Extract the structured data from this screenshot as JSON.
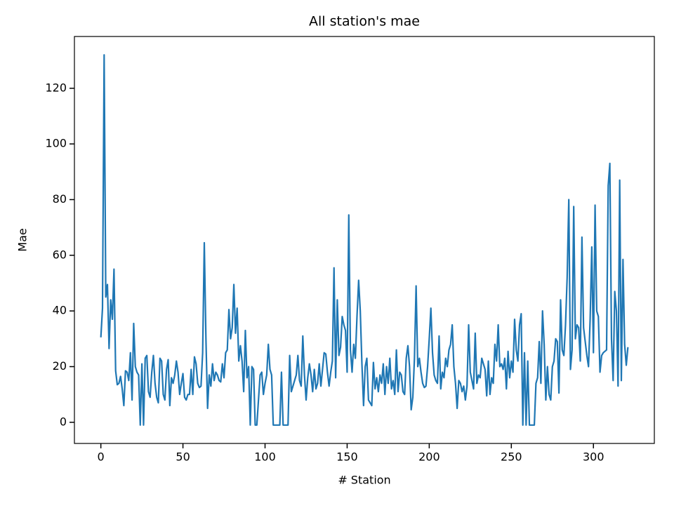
{
  "chart_data": {
    "type": "line",
    "title": "All station's mae",
    "xlabel": "# Station",
    "ylabel": "Mae",
    "color": "#1f77b4",
    "xlim": [
      -16.1,
      337.1
    ],
    "ylim": [
      -7.6,
      138.6
    ],
    "xticks": [
      0,
      50,
      100,
      150,
      200,
      250,
      300
    ],
    "yticks": [
      0,
      20,
      40,
      60,
      80,
      100,
      120
    ],
    "x": [
      0,
      1,
      2,
      3,
      4,
      5,
      6,
      7,
      8,
      9,
      10,
      11,
      12,
      13,
      14,
      15,
      16,
      17,
      18,
      19,
      20,
      21,
      22,
      23,
      24,
      25,
      26,
      27,
      28,
      29,
      30,
      31,
      32,
      33,
      34,
      35,
      36,
      37,
      38,
      39,
      40,
      41,
      42,
      43,
      44,
      45,
      46,
      47,
      48,
      49,
      50,
      51,
      52,
      53,
      54,
      55,
      56,
      57,
      58,
      59,
      60,
      61,
      62,
      63,
      64,
      65,
      66,
      67,
      68,
      69,
      70,
      71,
      72,
      73,
      74,
      75,
      76,
      77,
      78,
      79,
      80,
      81,
      82,
      83,
      84,
      85,
      86,
      87,
      88,
      89,
      90,
      91,
      92,
      93,
      94,
      95,
      96,
      97,
      98,
      99,
      100,
      101,
      102,
      103,
      104,
      105,
      106,
      107,
      108,
      109,
      110,
      111,
      112,
      113,
      114,
      115,
      116,
      117,
      118,
      119,
      120,
      121,
      122,
      123,
      124,
      125,
      126,
      127,
      128,
      129,
      130,
      131,
      132,
      133,
      134,
      135,
      136,
      137,
      138,
      139,
      140,
      141,
      142,
      143,
      144,
      145,
      146,
      147,
      148,
      149,
      150,
      151,
      152,
      153,
      154,
      155,
      156,
      157,
      158,
      159,
      160,
      161,
      162,
      163,
      164,
      165,
      166,
      167,
      168,
      169,
      170,
      171,
      172,
      173,
      174,
      175,
      176,
      177,
      178,
      179,
      180,
      181,
      182,
      183,
      184,
      185,
      186,
      187,
      188,
      189,
      190,
      191,
      192,
      193,
      194,
      195,
      196,
      197,
      198,
      199,
      200,
      201,
      202,
      203,
      204,
      205,
      206,
      207,
      208,
      209,
      210,
      211,
      212,
      213,
      214,
      215,
      216,
      217,
      218,
      219,
      220,
      221,
      222,
      223,
      224,
      225,
      226,
      227,
      228,
      229,
      230,
      231,
      232,
      233,
      234,
      235,
      236,
      237,
      238,
      239,
      240,
      241,
      242,
      243,
      244,
      245,
      246,
      247,
      248,
      249,
      250,
      251,
      252,
      253,
      254,
      255,
      256,
      257,
      258,
      259,
      260,
      261,
      262,
      263,
      264,
      265,
      266,
      267,
      268,
      269,
      270,
      271,
      272,
      273,
      274,
      275,
      276,
      277,
      278,
      279,
      280,
      281,
      282,
      283,
      284,
      285,
      286,
      287,
      288,
      289,
      290,
      291,
      292,
      293,
      294,
      295,
      296,
      297,
      298,
      299,
      300,
      301,
      302,
      303,
      304,
      305,
      306,
      307,
      308,
      309,
      310,
      311,
      312,
      313,
      314,
      315,
      316,
      317,
      318,
      319,
      320,
      321
    ],
    "values": [
      30.5,
      41,
      132,
      45,
      49.5,
      26.5,
      44,
      37,
      55,
      18.5,
      13.5,
      14,
      16.5,
      12,
      6,
      18.5,
      18,
      15,
      25,
      8,
      35.5,
      20,
      18,
      17,
      -1,
      21,
      -1,
      23,
      24,
      11,
      9,
      18,
      24,
      14,
      9,
      7,
      23,
      22,
      10,
      8,
      19,
      22.5,
      6,
      16,
      14,
      17,
      22,
      18,
      10,
      14,
      17.5,
      9,
      8,
      10,
      10,
      19,
      10,
      23.5,
      21,
      14,
      12.5,
      13,
      25,
      64.5,
      30,
      5,
      17,
      13,
      21,
      15,
      18,
      17,
      15,
      14.5,
      21,
      16,
      25,
      26,
      40.5,
      30,
      34,
      49.5,
      32,
      41,
      22,
      27.5,
      22,
      11,
      33,
      16,
      20,
      -1,
      20,
      19,
      -1,
      -1,
      8,
      17,
      18,
      10,
      14,
      17,
      28,
      19,
      17,
      -1,
      -1,
      -1,
      -1,
      -1,
      18,
      -1,
      -1,
      -1,
      -1,
      24,
      11,
      13,
      15,
      17,
      24,
      15,
      13,
      31,
      17,
      8,
      16,
      21,
      17,
      11,
      19,
      12,
      14,
      21,
      13,
      19,
      25,
      24.5,
      18,
      13,
      18,
      22,
      55.5,
      16,
      44,
      24,
      27,
      38,
      35,
      33,
      18,
      74.5,
      26,
      18,
      28,
      23,
      38,
      51,
      40,
      21,
      6,
      20,
      23,
      8,
      7,
      6,
      21.5,
      12,
      16,
      11,
      17,
      14,
      21,
      10,
      20,
      14,
      23,
      12,
      15,
      10,
      26,
      11,
      18,
      17,
      11,
      10,
      23,
      27.5,
      20,
      4.5,
      9,
      23,
      49,
      20,
      23,
      18,
      14,
      12.5,
      13,
      20,
      30,
      41,
      25,
      17,
      15,
      14,
      31,
      12,
      18,
      16,
      23,
      20,
      26,
      28,
      35,
      20,
      14,
      5,
      15,
      14,
      11,
      13,
      8,
      13,
      35,
      18,
      15,
      12,
      32,
      14,
      17,
      16,
      23,
      21,
      19,
      9.5,
      22,
      10,
      16,
      14,
      28,
      22,
      35,
      20,
      21,
      19,
      23,
      12,
      25.5,
      16,
      22,
      18,
      37,
      26,
      22,
      35,
      39,
      -1,
      25,
      -1,
      22,
      -1,
      -1,
      -1,
      -1,
      14,
      16,
      29,
      14,
      40,
      28,
      8,
      20,
      10,
      8,
      20,
      22,
      30,
      29,
      10.5,
      44,
      26,
      24,
      35,
      52,
      80,
      19,
      26,
      77.5,
      30,
      35,
      34,
      22,
      66.5,
      34,
      29,
      24,
      20,
      37,
      63,
      25,
      78,
      40,
      38,
      18,
      24,
      25,
      25.5,
      26,
      85,
      93,
      30,
      15,
      47,
      40,
      13,
      87,
      15,
      58.5,
      28,
      20.5,
      27
    ]
  }
}
